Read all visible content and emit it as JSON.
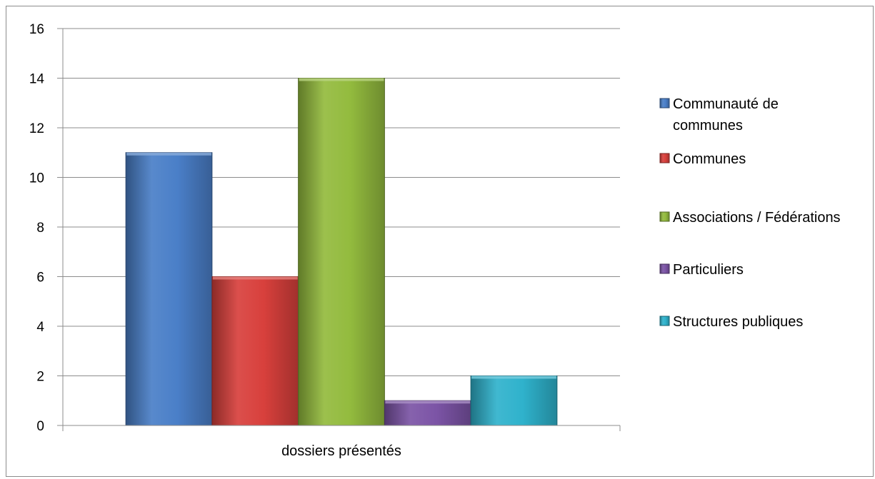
{
  "chart_data": {
    "type": "bar",
    "categories": [
      "dossiers présentés"
    ],
    "series": [
      {
        "name": "Communauté de communes",
        "values": [
          11
        ],
        "color": "#4a7fc8"
      },
      {
        "name": "Communes",
        "values": [
          6
        ],
        "color": "#d8403c"
      },
      {
        "name": "Associations / Fédérations",
        "values": [
          14
        ],
        "color": "#93bb3e"
      },
      {
        "name": "Particuliers",
        "values": [
          1
        ],
        "color": "#7c54a6"
      },
      {
        "name": "Structures publiques",
        "values": [
          2
        ],
        "color": "#2fb2cc"
      }
    ],
    "ylim": [
      0,
      16
    ],
    "yticks": [
      0,
      2,
      4,
      6,
      8,
      10,
      12,
      14,
      16
    ],
    "grid": true,
    "legend": "right"
  }
}
